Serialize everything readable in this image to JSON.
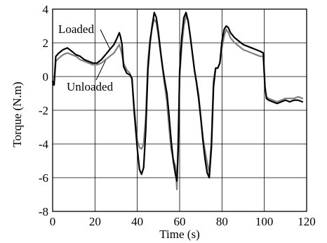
{
  "chart_data": {
    "type": "line",
    "xlabel": "Time (s)",
    "ylabel": "Torque (N.m)",
    "xlim": [
      0,
      120
    ],
    "ylim": [
      -8,
      4
    ],
    "xticks": [
      0,
      20,
      40,
      60,
      80,
      100,
      120
    ],
    "yticks": [
      -8,
      -6,
      -4,
      -2,
      0,
      2,
      4
    ],
    "grid": true,
    "series": [
      {
        "name": "Loaded",
        "color": "#000000",
        "x": [
          0,
          0.7,
          1.5,
          3,
          5,
          7,
          9,
          11,
          13,
          15,
          17,
          19,
          21,
          23,
          25,
          27,
          29,
          30.5,
          31.5,
          32,
          32.8,
          33.5,
          35,
          36.5,
          37.5,
          38.5,
          40,
          41,
          42,
          43,
          44,
          45,
          46,
          47,
          48,
          49,
          50,
          51,
          52,
          53,
          54,
          55,
          56,
          57,
          58,
          58.7,
          59.3,
          60,
          61,
          62,
          63,
          64,
          65,
          66,
          67,
          68,
          69,
          70,
          71,
          72,
          73,
          74,
          75,
          76,
          77,
          78,
          79,
          80,
          81,
          82,
          83,
          84,
          86,
          88,
          90,
          92,
          94,
          96,
          98,
          99.5,
          100.3,
          101,
          102,
          104,
          106,
          108,
          110,
          112,
          114,
          116,
          118
        ],
        "values": [
          -0.3,
          -0.5,
          1.2,
          1.4,
          1.6,
          1.7,
          1.5,
          1.3,
          1.2,
          1.0,
          0.9,
          0.8,
          0.8,
          1.0,
          1.3,
          1.6,
          1.9,
          2.3,
          2.6,
          2.4,
          1.9,
          0.6,
          0.2,
          0.1,
          -0.1,
          -2.0,
          -4.3,
          -5.5,
          -5.8,
          -5.4,
          -3.2,
          0.4,
          2.0,
          3.0,
          3.8,
          3.5,
          2.6,
          1.5,
          0.5,
          -0.3,
          -1.0,
          -2.3,
          -3.8,
          -5.0,
          -5.8,
          -6.2,
          -4.4,
          0.3,
          2.3,
          3.5,
          3.8,
          3.3,
          2.4,
          1.4,
          0.4,
          -0.4,
          -1.3,
          -2.5,
          -3.8,
          -4.9,
          -5.7,
          -6.0,
          -4.2,
          -0.6,
          0.5,
          0.5,
          0.8,
          2.1,
          2.8,
          3.0,
          2.9,
          2.6,
          2.3,
          2.1,
          1.9,
          1.8,
          1.7,
          1.6,
          1.5,
          1.4,
          -0.6,
          -1.3,
          -1.4,
          -1.5,
          -1.6,
          -1.5,
          -1.4,
          -1.5,
          -1.4,
          -1.4,
          -1.5
        ]
      },
      {
        "name": "Unloaded",
        "color": "#808080",
        "x": [
          0,
          0.7,
          1.5,
          3,
          5,
          7,
          9,
          11,
          13,
          15,
          17,
          19,
          21,
          23,
          25,
          27,
          29,
          30.5,
          31.5,
          32,
          32.8,
          33.5,
          35,
          36.5,
          37.5,
          38.5,
          40,
          41,
          42,
          43,
          44,
          45,
          46,
          47,
          48,
          49,
          50,
          51,
          52,
          53,
          54,
          55,
          56,
          57,
          58,
          58.7,
          59.3,
          60,
          61,
          62,
          63,
          64,
          65,
          66,
          67,
          68,
          69,
          70,
          71,
          72,
          73,
          74,
          75,
          76,
          77,
          78,
          79,
          80,
          81,
          82,
          83,
          84,
          86,
          88,
          90,
          92,
          94,
          96,
          98,
          99.5,
          100.3,
          101,
          102,
          104,
          106,
          108,
          110,
          112,
          114,
          116,
          118
        ],
        "values": [
          -0.5,
          -0.4,
          0.9,
          1.1,
          1.3,
          1.4,
          1.3,
          1.2,
          1.0,
          0.9,
          0.8,
          0.7,
          0.7,
          0.8,
          1.0,
          1.2,
          1.4,
          1.7,
          1.9,
          1.7,
          1.3,
          0.8,
          0.4,
          0.2,
          -0.2,
          -1.8,
          -3.8,
          -4.2,
          -4.3,
          -4.0,
          -2.4,
          0.9,
          2.2,
          2.9,
          3.4,
          3.2,
          2.4,
          1.4,
          0.4,
          -0.6,
          -1.5,
          -3.0,
          -4.3,
          -4.9,
          -5.3,
          -6.7,
          -3.7,
          0.0,
          1.8,
          3.0,
          3.6,
          3.3,
          2.4,
          1.4,
          0.4,
          -0.3,
          -1.1,
          -2.4,
          -3.6,
          -4.4,
          -5.1,
          -5.7,
          -3.8,
          -0.2,
          0.5,
          0.5,
          0.8,
          1.7,
          2.4,
          2.8,
          2.6,
          2.3,
          2.0,
          1.8,
          1.6,
          1.5,
          1.4,
          1.3,
          1.2,
          1.2,
          -0.7,
          -1.2,
          -1.3,
          -1.4,
          -1.5,
          -1.4,
          -1.3,
          -1.3,
          -1.3,
          -1.2,
          -1.3
        ]
      }
    ]
  }
}
